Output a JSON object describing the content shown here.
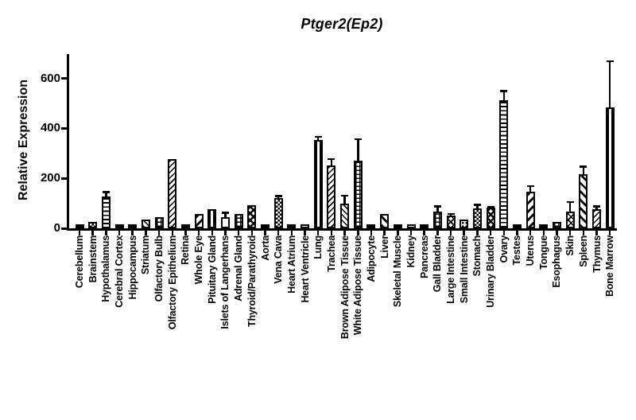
{
  "chart_data": {
    "type": "bar",
    "title": "Ptger2(Ep2)",
    "ylabel": "Relative Expression",
    "xlabel": "",
    "ylim": [
      0,
      700
    ],
    "yticks": [
      0,
      200,
      400,
      600
    ],
    "grid": false,
    "legend": "none",
    "bar_fill": "#ffffff",
    "bar_outline": "#000000",
    "error_bars": "sem-upper-cap",
    "categories": [
      "Cerebellum",
      "Brainstem",
      "Hypothalamus",
      "Cerebral Cortex",
      "Hippocampus",
      "Striatum",
      "Olfactory Bulb",
      "Olfactory Epithelium",
      "Retina",
      "Whole Eye",
      "Pituitary Gland",
      "Islets of Langerhans",
      "Adrenal Gland",
      "Thyroid/Parathyroid",
      "Aorta",
      "Vena Cava",
      "Heart Atrium",
      "Heart Ventricle",
      "Lung",
      "Trachea",
      "Brown Adipose Tissue",
      "White Adipose Tissue",
      "Adipocyte",
      "Liver",
      "Skeletal Muscle",
      "Kidney",
      "Pancreas",
      "Gall Bladder",
      "Large Intestine",
      "Small Intestine",
      "Stomach",
      "Urinary Bladder",
      "Ovary",
      "Testes",
      "Uterus",
      "Tongue",
      "Esophagus",
      "Skin",
      "Spleen",
      "Thymus",
      "Bone Marrow"
    ],
    "values": [
      12,
      27,
      128,
      12,
      12,
      34,
      46,
      278,
      8,
      58,
      78,
      45,
      56,
      92,
      10,
      120,
      12,
      14,
      355,
      253,
      100,
      272,
      15,
      58,
      12,
      10,
      6,
      68,
      50,
      36,
      80,
      82,
      512,
      8,
      148,
      10,
      27,
      68,
      218,
      78,
      485
    ],
    "errors": [
      0,
      0,
      18,
      0,
      0,
      0,
      0,
      0,
      0,
      0,
      0,
      18,
      0,
      0,
      0,
      10,
      0,
      0,
      12,
      25,
      32,
      85,
      0,
      0,
      0,
      0,
      0,
      20,
      8,
      0,
      15,
      5,
      38,
      0,
      22,
      0,
      0,
      38,
      30,
      10,
      185
    ],
    "patterns": [
      "solid",
      "checker",
      "hlines",
      "solid",
      "solid",
      "diagdown",
      "grid",
      "diagup",
      "solid",
      "diagup-wide",
      "vlines",
      "open",
      "grid",
      "diamond",
      "solid",
      "checker",
      "solid",
      "open",
      "vlines",
      "diagup",
      "diagdown",
      "grid",
      "solid",
      "diagdown-wide",
      "solid",
      "dots",
      "solid",
      "grid",
      "crosshatch",
      "dots",
      "checker",
      "diamond",
      "hlines",
      "solid",
      "diagup-wide",
      "solid",
      "grid",
      "crosshatch",
      "diagdown-wide",
      "diagup",
      "vlines"
    ]
  }
}
